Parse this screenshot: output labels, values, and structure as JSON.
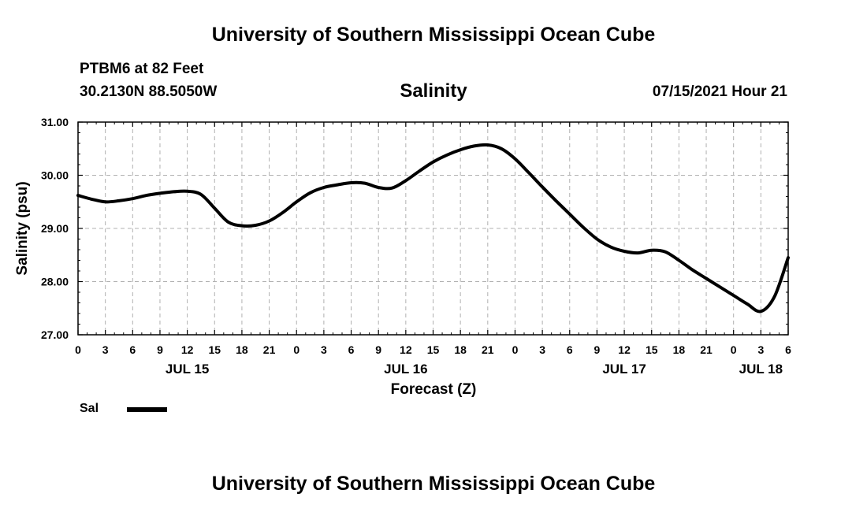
{
  "header": {
    "title": "University of Southern Mississippi Ocean Cube",
    "station": "PTBM6 at 82 Feet",
    "coords": "30.2130N  88.5050W",
    "timestamp": "07/15/2021 Hour 21"
  },
  "footer": {
    "title": "University of Southern Mississippi Ocean Cube"
  },
  "legend": {
    "label": "Sal",
    "color": "#000000"
  },
  "chart_data": {
    "type": "line",
    "title": "Salinity",
    "xlabel": "Forecast (Z)",
    "ylabel": "Salinity (psu)",
    "xlim": [
      0,
      78
    ],
    "ylim": [
      27.0,
      31.0
    ],
    "grid": true,
    "x_ticks": [
      0,
      3,
      6,
      9,
      12,
      15,
      18,
      21,
      24,
      27,
      30,
      33,
      36,
      39,
      42,
      45,
      48,
      51,
      54,
      57,
      60,
      63,
      66,
      69,
      72,
      75,
      78
    ],
    "x_tick_labels": [
      "0",
      "3",
      "6",
      "9",
      "12",
      "15",
      "18",
      "21",
      "0",
      "3",
      "6",
      "9",
      "12",
      "15",
      "18",
      "21",
      "0",
      "3",
      "6",
      "9",
      "12",
      "15",
      "18",
      "21",
      "0",
      "3",
      "6"
    ],
    "y_ticks": [
      27.0,
      28.0,
      29.0,
      30.0,
      31.0
    ],
    "y_tick_labels": [
      "27.00",
      "28.00",
      "29.00",
      "30.00",
      "31.00"
    ],
    "date_labels": [
      {
        "x": 12,
        "label": "JUL 15"
      },
      {
        "x": 36,
        "label": "JUL 16"
      },
      {
        "x": 60,
        "label": "JUL 17"
      },
      {
        "x": 75,
        "label": "JUL 18"
      }
    ],
    "series": [
      {
        "name": "Sal",
        "x": [
          0,
          1.5,
          3,
          4.5,
          6,
          7.5,
          9,
          10.5,
          12,
          13.5,
          15,
          16.5,
          18,
          19.5,
          21,
          22.5,
          24,
          25.5,
          27,
          28.5,
          30,
          31.5,
          33,
          34.5,
          36,
          37.5,
          39,
          40.5,
          42,
          43.5,
          45,
          46.5,
          48,
          49.5,
          51,
          52.5,
          54,
          55.5,
          57,
          58.5,
          60,
          61.5,
          63,
          64.5,
          66,
          67.5,
          69,
          70.5,
          72,
          73.5,
          75,
          76.5,
          78
        ],
        "values": [
          29.62,
          29.55,
          29.5,
          29.52,
          29.56,
          29.62,
          29.66,
          29.69,
          29.7,
          29.64,
          29.38,
          29.12,
          29.05,
          29.06,
          29.14,
          29.3,
          29.5,
          29.67,
          29.77,
          29.82,
          29.86,
          29.85,
          29.77,
          29.76,
          29.9,
          30.08,
          30.25,
          30.38,
          30.48,
          30.55,
          30.57,
          30.5,
          30.31,
          30.05,
          29.78,
          29.52,
          29.27,
          29.02,
          28.8,
          28.65,
          28.57,
          28.54,
          28.59,
          28.56,
          28.4,
          28.22,
          28.06,
          27.9,
          27.74,
          27.58,
          27.44,
          27.72,
          28.45
        ]
      }
    ]
  }
}
